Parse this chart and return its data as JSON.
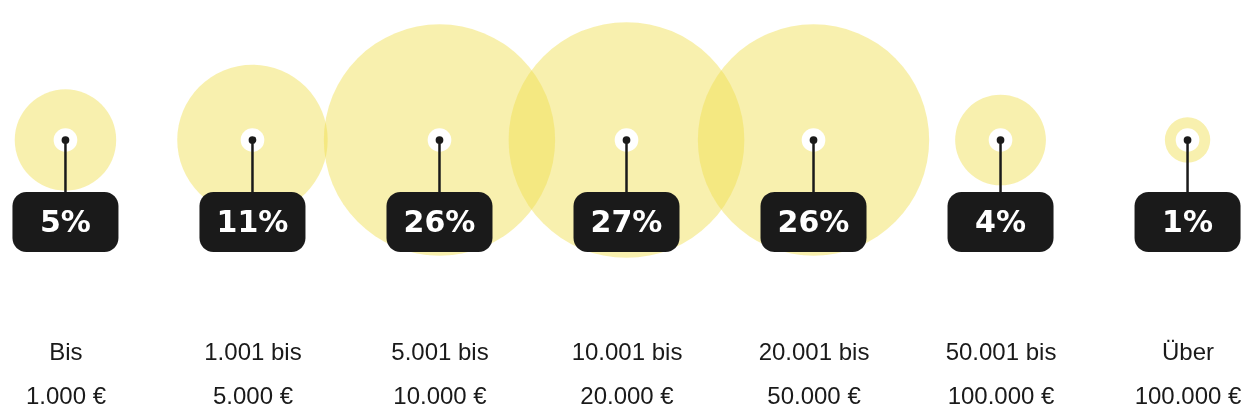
{
  "chart_data": {
    "type": "other",
    "categories": [
      "Bis\n1.000 €",
      "1.001 bis\n5.000 €",
      "5.001 bis\n10.000 €",
      "10.001 bis\n20.000 €",
      "20.001 bis\n50.000 €",
      "50.001 bis\n100.000 €",
      "Über\n100.000 €"
    ],
    "values": [
      5,
      11,
      26,
      27,
      26,
      4,
      1
    ],
    "value_labels": [
      "5%",
      "11%",
      "26%",
      "27%",
      "26%",
      "4%",
      "1%"
    ]
  }
}
